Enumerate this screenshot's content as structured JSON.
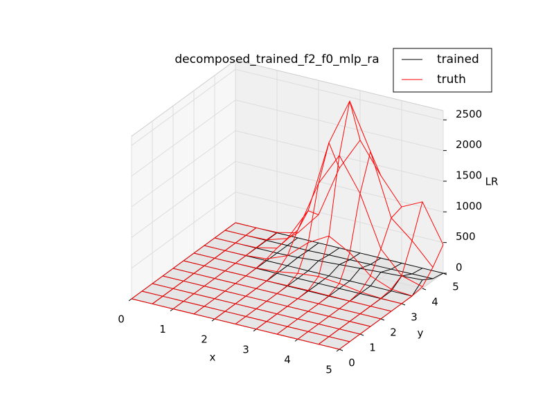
{
  "chart_data": {
    "type": "wireframe3d",
    "title": "decomposed_trained_f2_f0_mlp_ra",
    "xlabel": "x",
    "ylabel": "y",
    "zlabel": "LR",
    "x": [
      0,
      0.5,
      1,
      1.5,
      2,
      2.5,
      3,
      3.5,
      4,
      4.5,
      5
    ],
    "y": [
      0,
      0.5,
      1,
      1.5,
      2,
      2.5,
      3,
      3.5,
      4,
      4.5,
      5
    ],
    "xlim": [
      0,
      5
    ],
    "ylim": [
      0,
      5
    ],
    "zlim": [
      0,
      2650
    ],
    "xticks": [
      0,
      1,
      2,
      3,
      4,
      5
    ],
    "yticks": [
      0,
      1,
      2,
      3,
      4,
      5
    ],
    "zticks": [
      0,
      500,
      1000,
      1500,
      2000,
      2500
    ],
    "grid": true,
    "legend": "upper right",
    "series": [
      {
        "name": "trained",
        "color": "#000000",
        "z": [
          [
            0,
            0,
            0,
            0,
            0,
            0,
            0,
            0,
            0,
            0,
            0
          ],
          [
            0,
            0,
            0,
            0,
            0,
            0,
            0,
            0,
            0,
            0,
            0
          ],
          [
            0,
            0,
            0,
            0,
            0,
            0,
            0,
            0,
            0,
            0,
            0
          ],
          [
            0,
            0,
            0,
            0,
            0,
            0,
            0,
            0,
            0,
            0,
            0
          ],
          [
            0,
            0,
            0,
            0,
            0,
            0,
            0,
            0,
            10,
            0,
            0
          ],
          [
            0,
            0,
            0,
            0,
            0,
            0,
            0,
            0,
            40,
            10,
            0
          ],
          [
            0,
            0,
            0,
            0,
            0,
            0,
            0,
            0,
            60,
            15,
            0
          ],
          [
            0,
            0,
            0,
            0,
            0,
            0,
            0,
            0,
            80,
            20,
            0
          ],
          [
            0,
            0,
            0,
            0,
            0,
            0,
            0,
            0,
            100,
            25,
            0
          ],
          [
            0,
            0,
            0,
            0,
            0,
            0,
            0,
            0,
            120,
            30,
            0
          ],
          [
            0,
            0,
            0,
            0,
            0,
            0,
            0,
            0,
            140,
            35,
            0
          ]
        ]
      },
      {
        "name": "truth",
        "color": "#ff0000",
        "z": [
          [
            0,
            0,
            0,
            0,
            0,
            0,
            0,
            0,
            0,
            0,
            0
          ],
          [
            0,
            0,
            0,
            0,
            0,
            0,
            0,
            0,
            0,
            0,
            0
          ],
          [
            0,
            0,
            0,
            0,
            0,
            0,
            0,
            2,
            7,
            10,
            7
          ],
          [
            0,
            0,
            0,
            0,
            0,
            0,
            5,
            29,
            81,
            114,
            81
          ],
          [
            0,
            0,
            0,
            0,
            0,
            2,
            29,
            163,
            459,
            650,
            459
          ],
          [
            0,
            0,
            0,
            0,
            0,
            7,
            81,
            459,
            1300,
            1839,
            1300
          ],
          [
            0,
            0,
            0,
            0,
            0,
            10,
            114,
            650,
            1839,
            2600,
            1840
          ],
          [
            0,
            0,
            0,
            0,
            0,
            7,
            81,
            459,
            1300,
            1859,
            1344
          ],
          [
            0,
            0,
            0,
            0,
            0,
            2,
            29,
            163,
            479,
            860,
            917
          ],
          [
            0,
            0,
            0,
            0,
            0,
            0,
            5,
            29,
            125,
            572,
            1081
          ],
          [
            0,
            0,
            0,
            0,
            0,
            0,
            0,
            2,
            27,
            220,
            465
          ]
        ]
      }
    ]
  }
}
